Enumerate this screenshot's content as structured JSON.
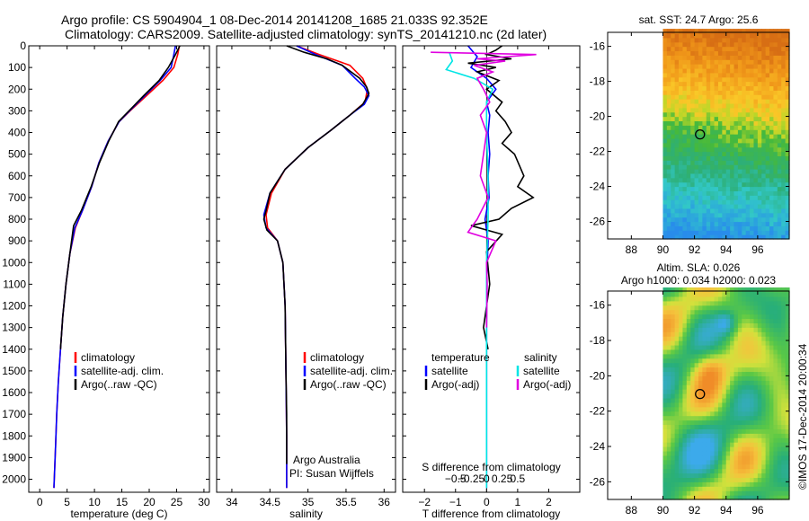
{
  "header": {
    "line1": "Argo profile: CS 5904904_1 08-Dec-2014 20141208_1685 21.033S 92.352E",
    "line2": "Climatology: CARS2009. Satellite-adjusted climatology: synTS_20141210.nc (2d later)"
  },
  "colors": {
    "climatology": "#ff0000",
    "satellite": "#0000ff",
    "argo": "#000000",
    "satellite_s": "#00e5e5",
    "argo_s": "#e000e0"
  },
  "chart_data": [
    {
      "type": "line",
      "id": "temperature",
      "xlabel": "temperature (deg C)",
      "xlim": [
        -2,
        31
      ],
      "ylim": [
        2060,
        0
      ],
      "xticks": [
        0,
        5,
        10,
        15,
        20,
        25,
        30
      ],
      "xtick_labels": [
        "0",
        "5",
        "10",
        "15",
        "20",
        "25",
        "30"
      ],
      "yticks": [
        0,
        100,
        200,
        300,
        400,
        500,
        600,
        700,
        800,
        900,
        1000,
        1100,
        1200,
        1300,
        1400,
        1500,
        1600,
        1700,
        1800,
        1900,
        2000
      ],
      "ytick_labels": [
        "0",
        "100",
        "200",
        "300",
        "400",
        "500",
        "600",
        "700",
        "800",
        "900",
        "1000",
        "1100",
        "1200",
        "1300",
        "1400",
        "1500",
        "1600",
        "1700",
        "1800",
        "1900",
        "2000"
      ],
      "legend": [
        "climatology",
        "satellite-adj. clim.",
        "Argo(..raw -QC)"
      ],
      "series": [
        {
          "name": "climatology",
          "color_key": "climatology",
          "points": [
            [
              25.5,
              0
            ],
            [
              25.2,
              40
            ],
            [
              24.5,
              100
            ],
            [
              22.5,
              160
            ],
            [
              19.5,
              230
            ],
            [
              16.5,
              300
            ],
            [
              14.5,
              350
            ],
            [
              12.5,
              440
            ],
            [
              10.8,
              540
            ],
            [
              9.5,
              650
            ],
            [
              7.8,
              760
            ],
            [
              6.5,
              840
            ],
            [
              5.5,
              960
            ],
            [
              4.8,
              1100
            ],
            [
              4.2,
              1250
            ],
            [
              3.8,
              1400
            ],
            [
              3.4,
              1550
            ],
            [
              3.1,
              1700
            ],
            [
              2.9,
              1850
            ],
            [
              2.6,
              2040
            ]
          ]
        },
        {
          "name": "satellite-adj. clim.",
          "color_key": "satellite",
          "points": [
            [
              24.8,
              0
            ],
            [
              24.5,
              40
            ],
            [
              24.0,
              100
            ],
            [
              22.0,
              160
            ],
            [
              19.2,
              230
            ],
            [
              16.4,
              300
            ],
            [
              14.5,
              350
            ],
            [
              12.5,
              440
            ],
            [
              10.8,
              540
            ],
            [
              9.5,
              650
            ],
            [
              7.8,
              760
            ],
            [
              6.4,
              840
            ],
            [
              5.5,
              960
            ],
            [
              4.8,
              1100
            ],
            [
              4.2,
              1250
            ],
            [
              3.8,
              1400
            ],
            [
              3.4,
              1550
            ],
            [
              3.1,
              1700
            ],
            [
              2.9,
              1850
            ],
            [
              2.6,
              2040
            ]
          ]
        },
        {
          "name": "Argo(..raw -QC)",
          "color_key": "argo",
          "points": [
            [
              25.6,
              0
            ],
            [
              24.8,
              40
            ],
            [
              23.5,
              100
            ],
            [
              21.8,
              160
            ],
            [
              19.0,
              230
            ],
            [
              16.3,
              300
            ],
            [
              14.4,
              350
            ],
            [
              12.6,
              440
            ],
            [
              10.9,
              540
            ],
            [
              9.4,
              650
            ],
            [
              7.6,
              760
            ],
            [
              6.2,
              830
            ],
            [
              5.5,
              960
            ],
            [
              4.8,
              1100
            ],
            [
              4.2,
              1250
            ],
            [
              3.8,
              1400
            ]
          ]
        }
      ]
    },
    {
      "type": "line",
      "id": "salinity",
      "xlabel": "salinity",
      "xlim": [
        33.8,
        36.15
      ],
      "ylim": [
        2060,
        0
      ],
      "xticks": [
        34,
        34.5,
        35,
        35.5,
        36
      ],
      "xtick_labels": [
        "34",
        "34.5",
        "35",
        "35.5",
        "36"
      ],
      "legend": [
        "climatology",
        "satellite-adj. clim.",
        "Argo(..raw -QC)"
      ],
      "annotation": [
        "Argo Australia",
        "PI: Susan Wijffels"
      ],
      "series": [
        {
          "name": "climatology",
          "color_key": "climatology",
          "points": [
            [
              34.85,
              0
            ],
            [
              35.15,
              40
            ],
            [
              35.55,
              90
            ],
            [
              35.72,
              150
            ],
            [
              35.78,
              200
            ],
            [
              35.75,
              260
            ],
            [
              35.55,
              320
            ],
            [
              35.3,
              390
            ],
            [
              35.0,
              470
            ],
            [
              34.7,
              570
            ],
            [
              34.52,
              680
            ],
            [
              34.45,
              780
            ],
            [
              34.47,
              840
            ],
            [
              34.6,
              900
            ],
            [
              34.67,
              1000
            ],
            [
              34.7,
              1200
            ],
            [
              34.71,
              1500
            ],
            [
              34.72,
              1800
            ],
            [
              34.72,
              2040
            ]
          ]
        },
        {
          "name": "satellite-adj. clim.",
          "color_key": "satellite",
          "points": [
            [
              34.85,
              0
            ],
            [
              35.1,
              40
            ],
            [
              35.45,
              90
            ],
            [
              35.62,
              150
            ],
            [
              35.74,
              190
            ],
            [
              35.8,
              230
            ],
            [
              35.74,
              270
            ],
            [
              35.55,
              320
            ],
            [
              35.3,
              390
            ],
            [
              35.0,
              470
            ],
            [
              34.7,
              570
            ],
            [
              34.5,
              680
            ],
            [
              34.42,
              780
            ],
            [
              34.45,
              840
            ],
            [
              34.6,
              900
            ],
            [
              34.67,
              1000
            ],
            [
              34.7,
              1200
            ],
            [
              34.71,
              1500
            ],
            [
              34.72,
              1800
            ],
            [
              34.72,
              2040
            ]
          ]
        },
        {
          "name": "Argo(..raw -QC)",
          "color_key": "argo",
          "points": [
            [
              34.72,
              0
            ],
            [
              34.95,
              30
            ],
            [
              35.15,
              50
            ],
            [
              35.25,
              60
            ],
            [
              35.45,
              90
            ],
            [
              35.68,
              150
            ],
            [
              35.77,
              190
            ],
            [
              35.8,
              220
            ],
            [
              35.72,
              270
            ],
            [
              35.55,
              320
            ],
            [
              35.3,
              390
            ],
            [
              35.0,
              470
            ],
            [
              34.7,
              570
            ],
            [
              34.5,
              680
            ],
            [
              34.45,
              760
            ],
            [
              34.42,
              800
            ],
            [
              34.46,
              850
            ],
            [
              34.6,
              900
            ],
            [
              34.67,
              1000
            ],
            [
              34.7,
              1200
            ],
            [
              34.71,
              1500
            ],
            [
              34.72,
              1700
            ],
            [
              34.72,
              1930
            ]
          ]
        }
      ]
    },
    {
      "type": "line",
      "id": "difference",
      "xlabel": "T difference from climatology",
      "xlabel2": "S difference from climatology",
      "xlim": [
        -2.7,
        3.0
      ],
      "ylim": [
        2060,
        0
      ],
      "xticks": [
        -2,
        -1,
        0,
        1,
        2
      ],
      "xtick_labels": [
        "−2",
        "−1",
        "0",
        "1",
        "2"
      ],
      "s_ticks": [
        -1,
        -0.5,
        0,
        0.5,
        1
      ],
      "s_tick_labels": [
        "−0.5",
        "−0.25",
        "0",
        "0.25",
        "0.5"
      ],
      "legend_t": {
        "title": "temperature",
        "items": [
          "satellite",
          "Argo(-adj)"
        ]
      },
      "legend_s": {
        "title": "salinity",
        "items": [
          "satellite",
          "Argo(-adj)"
        ]
      },
      "series": [
        {
          "name": "satellite",
          "color_key": "satellite",
          "points": [
            [
              -0.6,
              0
            ],
            [
              -0.3,
              50
            ],
            [
              -0.5,
              100
            ],
            [
              0,
              150
            ],
            [
              0.3,
              200
            ],
            [
              0,
              260
            ],
            [
              0.1,
              320
            ],
            [
              0.05,
              400
            ],
            [
              0.1,
              500
            ],
            [
              0.05,
              600
            ],
            [
              0.08,
              700
            ],
            [
              -0.05,
              800
            ],
            [
              0.05,
              900
            ],
            [
              0,
              1100
            ],
            [
              0,
              1500
            ],
            [
              0,
              2040
            ]
          ]
        },
        {
          "name": "Argo(-adj)",
          "color_key": "argo",
          "points": [
            [
              0.5,
              0
            ],
            [
              0.3,
              20
            ],
            [
              0,
              40
            ],
            [
              0.8,
              60
            ],
            [
              -0.6,
              80
            ],
            [
              0.3,
              100
            ],
            [
              -0.3,
              120
            ],
            [
              0.4,
              160
            ],
            [
              0,
              200
            ],
            [
              0.5,
              260
            ],
            [
              0.3,
              300
            ],
            [
              0.6,
              350
            ],
            [
              0.8,
              400
            ],
            [
              0.5,
              450
            ],
            [
              0.9,
              500
            ],
            [
              1.2,
              600
            ],
            [
              1.0,
              650
            ],
            [
              1.5,
              700
            ],
            [
              0.8,
              750
            ],
            [
              0.4,
              800
            ],
            [
              -0.5,
              830
            ],
            [
              0.5,
              870
            ],
            [
              0,
              950
            ],
            [
              0.1,
              1100
            ],
            [
              0,
              1200
            ],
            [
              -0.1,
              1300
            ],
            [
              0.05,
              1400
            ]
          ]
        },
        {
          "name": "satellite",
          "color_key": "satellite_s",
          "points": [
            [
              -1.2,
              30
            ],
            [
              -1.1,
              70
            ],
            [
              -1.3,
              110
            ],
            [
              -0.4,
              150
            ],
            [
              0.2,
              200
            ],
            [
              0,
              260
            ],
            [
              0,
              400
            ],
            [
              0.05,
              600
            ],
            [
              0.05,
              800
            ],
            [
              0,
              1000
            ],
            [
              0,
              1500
            ],
            [
              0,
              2040
            ]
          ]
        },
        {
          "name": "Argo(-adj)",
          "color_key": "argo_s",
          "points": [
            [
              -1.8,
              30
            ],
            [
              1.6,
              40
            ],
            [
              -0.3,
              60
            ],
            [
              0.6,
              70
            ],
            [
              -0.4,
              90
            ],
            [
              0.2,
              120
            ],
            [
              -0.3,
              150
            ],
            [
              -0.1,
              200
            ],
            [
              0.1,
              260
            ],
            [
              -0.2,
              320
            ],
            [
              0,
              400
            ],
            [
              -0.1,
              500
            ],
            [
              -0.2,
              600
            ],
            [
              0.05,
              700
            ],
            [
              -0.3,
              800
            ],
            [
              -0.6,
              860
            ],
            [
              0.3,
              900
            ],
            [
              0,
              1000
            ],
            [
              0.02,
              1100
            ],
            [
              0,
              1300
            ]
          ]
        }
      ]
    },
    {
      "type": "heatmap",
      "id": "sst",
      "title": "sat. SST: 24.7  Argo: 25.6",
      "xlim": [
        86.5,
        98
      ],
      "ylim": [
        -27,
        -15.2
      ],
      "xticks": [
        88,
        90,
        92,
        94,
        96
      ],
      "xtick_labels": [
        "88",
        "90",
        "92",
        "94",
        "96"
      ],
      "yticks": [
        -16,
        -18,
        -20,
        -22,
        -24,
        -26
      ],
      "ytick_labels": [
        "-16",
        "-18",
        "-20",
        "-22",
        "-24",
        "-26"
      ],
      "data_xlim": [
        90,
        98
      ],
      "marker": [
        92.35,
        -21.03
      ]
    },
    {
      "type": "heatmap",
      "id": "sla",
      "title": "Altim. SLA: 0.026",
      "subtitle": "Argo h1000: 0.034 h2000: 0.023",
      "xlim": [
        86.5,
        98
      ],
      "ylim": [
        -27,
        -15.2
      ],
      "xticks": [
        88,
        90,
        92,
        94,
        96
      ],
      "xtick_labels": [
        "88",
        "90",
        "92",
        "94",
        "96"
      ],
      "yticks": [
        -16,
        -18,
        -20,
        -22,
        -24,
        -26
      ],
      "ytick_labels": [
        "-16",
        "-18",
        "-20",
        "-22",
        "-24",
        "-26"
      ],
      "data_xlim": [
        90,
        98
      ],
      "marker": [
        92.35,
        -21.03
      ]
    }
  ],
  "footer": {
    "vertical_label": "©IMOS 17-Dec-2014 20:00:34"
  }
}
